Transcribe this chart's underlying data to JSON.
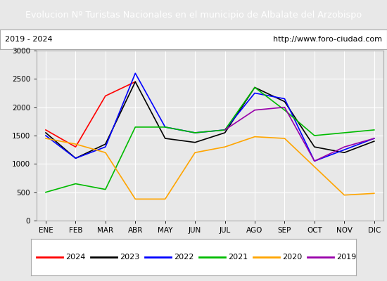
{
  "title": "Evolucion Nº Turistas Nacionales en el municipio de Albalate del Arzobispo",
  "subtitle_left": "2019 - 2024",
  "subtitle_right": "http://www.foro-ciudad.com",
  "months": [
    "ENE",
    "FEB",
    "MAR",
    "ABR",
    "MAY",
    "JUN",
    "JUL",
    "AGO",
    "SEP",
    "OCT",
    "NOV",
    "DIC"
  ],
  "ylim": [
    0,
    3000
  ],
  "yticks": [
    0,
    500,
    1000,
    1500,
    2000,
    2500,
    3000
  ],
  "series": {
    "2024": {
      "color": "#ff0000",
      "data": [
        1600,
        1300,
        2200,
        2450,
        null,
        null,
        null,
        null,
        null,
        null,
        null,
        null
      ]
    },
    "2023": {
      "color": "#000000",
      "data": [
        1550,
        1100,
        1350,
        2450,
        1450,
        1380,
        1550,
        2350,
        2100,
        1300,
        1200,
        1400
      ]
    },
    "2022": {
      "color": "#0000ff",
      "data": [
        1500,
        1100,
        1300,
        2600,
        1650,
        1550,
        1600,
        2250,
        2150,
        1050,
        1250,
        1450
      ]
    },
    "2021": {
      "color": "#00bb00",
      "data": [
        500,
        650,
        550,
        1650,
        1650,
        1550,
        1600,
        2350,
        1950,
        1500,
        1550,
        1600
      ]
    },
    "2020": {
      "color": "#ffa500",
      "data": [
        1450,
        1350,
        1200,
        380,
        380,
        1200,
        1300,
        1480,
        1450,
        950,
        450,
        480
      ]
    },
    "2019": {
      "color": "#9900aa",
      "data": [
        null,
        null,
        null,
        null,
        null,
        null,
        1600,
        1950,
        2000,
        1050,
        1300,
        1450
      ]
    }
  },
  "legend_order": [
    "2024",
    "2023",
    "2022",
    "2021",
    "2020",
    "2019"
  ],
  "bg_color": "#e8e8e8",
  "plot_bg_color": "#e8e8e8",
  "title_bg_color": "#4472c4",
  "title_text_color": "#ffffff",
  "grid_color": "#ffffff",
  "subtitle_bg_color": "#ffffff"
}
